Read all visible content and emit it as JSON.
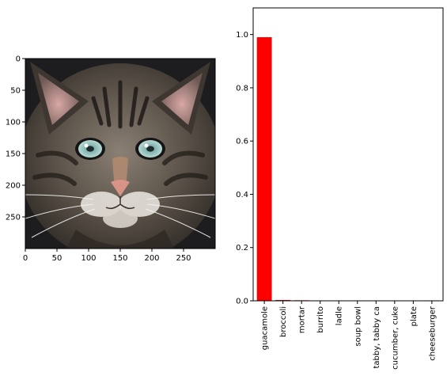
{
  "image_panel": {
    "subject_icon": "cat-face-icon",
    "x_ticks": [
      0,
      50,
      100,
      150,
      200,
      250
    ],
    "y_ticks": [
      0,
      50,
      100,
      150,
      200,
      250
    ],
    "x_range": [
      0,
      300
    ],
    "y_range": [
      0,
      300
    ]
  },
  "chart_data": {
    "type": "bar",
    "categories": [
      "guacamole",
      "broccoli",
      "mortar",
      "burrito",
      "ladle",
      "soup bowl",
      "tabby, tabby ca",
      "cucumber, cuke",
      "plate",
      "cheeseburger"
    ],
    "values": [
      0.99,
      0.003,
      0.002,
      0.001,
      0.0008,
      0.0006,
      0.0005,
      0.0004,
      0.0003,
      0.0002
    ],
    "y_ticks": [
      "0.0",
      "0.2",
      "0.4",
      "0.6",
      "0.8",
      "1.0"
    ],
    "ylim": [
      0,
      1.1
    ],
    "bar_color": "#ff0000",
    "grid": false,
    "xlabel": "",
    "ylabel": "",
    "title": ""
  }
}
